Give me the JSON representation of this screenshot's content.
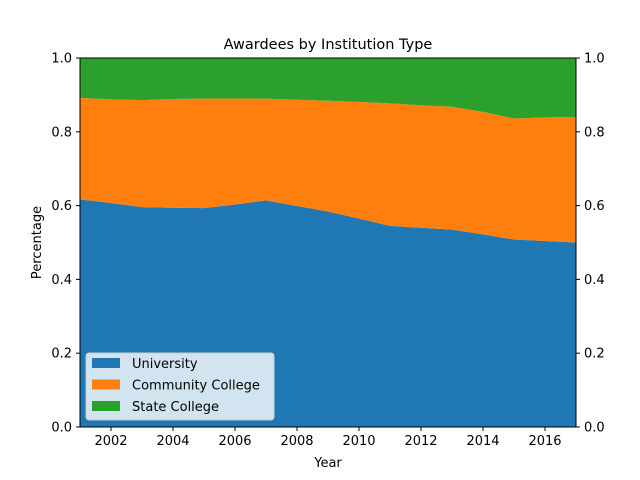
{
  "chart_data": {
    "type": "area",
    "title": "Awardees by Institution Type",
    "xlabel": "Year",
    "ylabel": "Percentage",
    "xlim": [
      2001,
      2017
    ],
    "ylim": [
      0,
      1
    ],
    "x": [
      2001,
      2002,
      2003,
      2004,
      2005,
      2006,
      2007,
      2008,
      2009,
      2010,
      2011,
      2012,
      2013,
      2014,
      2015,
      2016,
      2017
    ],
    "x_ticks": [
      2002,
      2004,
      2006,
      2008,
      2010,
      2012,
      2014,
      2016
    ],
    "x_tick_labels": [
      "2002",
      "2004",
      "2006",
      "2008",
      "2010",
      "2012",
      "2014",
      "2016"
    ],
    "y_ticks": [
      0,
      0.2,
      0.4,
      0.6,
      0.8,
      1.0
    ],
    "y_tick_labels": [
      "0.0",
      "0.2",
      "0.4",
      "0.6",
      "0.8",
      "1.0"
    ],
    "right_y_axis": true,
    "grid": false,
    "stacked": true,
    "legend_position": "lower-left",
    "series": [
      {
        "name": "University",
        "color": "#1f77b4",
        "values": [
          0.617,
          0.607,
          0.596,
          0.594,
          0.593,
          0.603,
          0.614,
          0.599,
          0.584,
          0.565,
          0.545,
          0.54,
          0.535,
          0.522,
          0.508,
          0.504,
          0.5
        ]
      },
      {
        "name": "Community College",
        "color": "#ff7f0e",
        "values": [
          0.275,
          0.281,
          0.29,
          0.295,
          0.297,
          0.287,
          0.276,
          0.288,
          0.3,
          0.316,
          0.332,
          0.332,
          0.333,
          0.332,
          0.328,
          0.335,
          0.34
        ]
      },
      {
        "name": "State College",
        "color": "#2ca02c",
        "values": [
          0.108,
          0.112,
          0.114,
          0.111,
          0.11,
          0.11,
          0.11,
          0.113,
          0.116,
          0.119,
          0.123,
          0.128,
          0.132,
          0.146,
          0.164,
          0.161,
          0.16
        ]
      }
    ]
  }
}
